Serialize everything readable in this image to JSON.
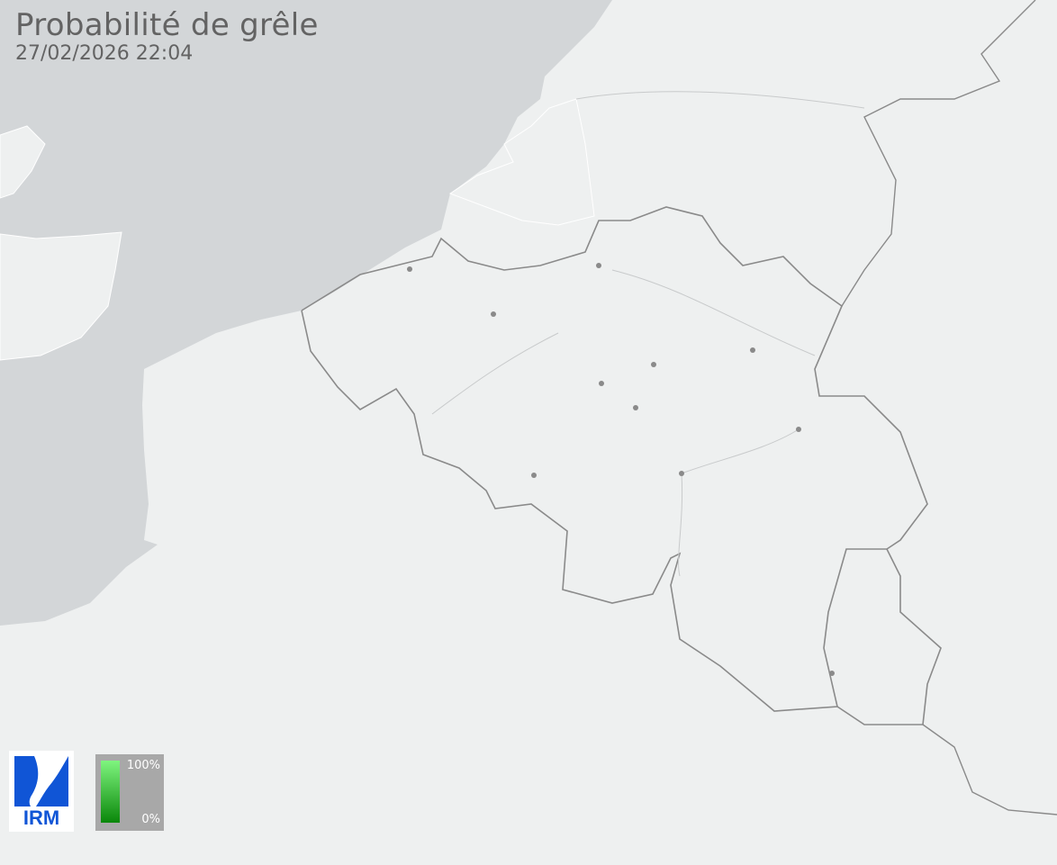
{
  "header": {
    "title": "Probabilité de grêle",
    "timestamp": "27/02/2026 22:04"
  },
  "logo": {
    "text": "IRM",
    "color": "#1055d6"
  },
  "legend": {
    "max_label": "100%",
    "min_label": "0%",
    "color_high": "#7ff57f",
    "color_low": "#0a870a"
  },
  "colors": {
    "land": "#eef0f0",
    "sea": "#d3d6d8",
    "border": "#8a8a8a"
  }
}
